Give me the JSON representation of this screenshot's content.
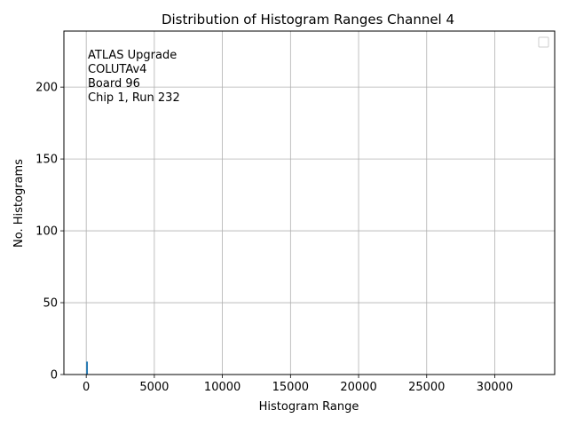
{
  "chart_data": {
    "type": "bar",
    "title": "Distribution of Histogram Ranges Channel 4",
    "xlabel": "Histogram Range",
    "ylabel": "No. Histograms",
    "xlim": [
      -1640,
      34400
    ],
    "ylim": [
      0,
      239
    ],
    "xticks": [
      0,
      5000,
      10000,
      15000,
      20000,
      25000,
      30000
    ],
    "yticks": [
      0,
      50,
      100,
      150,
      200
    ],
    "grid": true,
    "legend": {
      "placement": "upper right",
      "entries": []
    },
    "bar_color": "#1f77b4",
    "annotation": [
      "ATLAS Upgrade",
      "COLUTAv4",
      " Board 96",
      "Chip 1, Run 232"
    ],
    "bins": [
      {
        "x0": 0,
        "x1": 120,
        "count": 9
      }
    ]
  }
}
